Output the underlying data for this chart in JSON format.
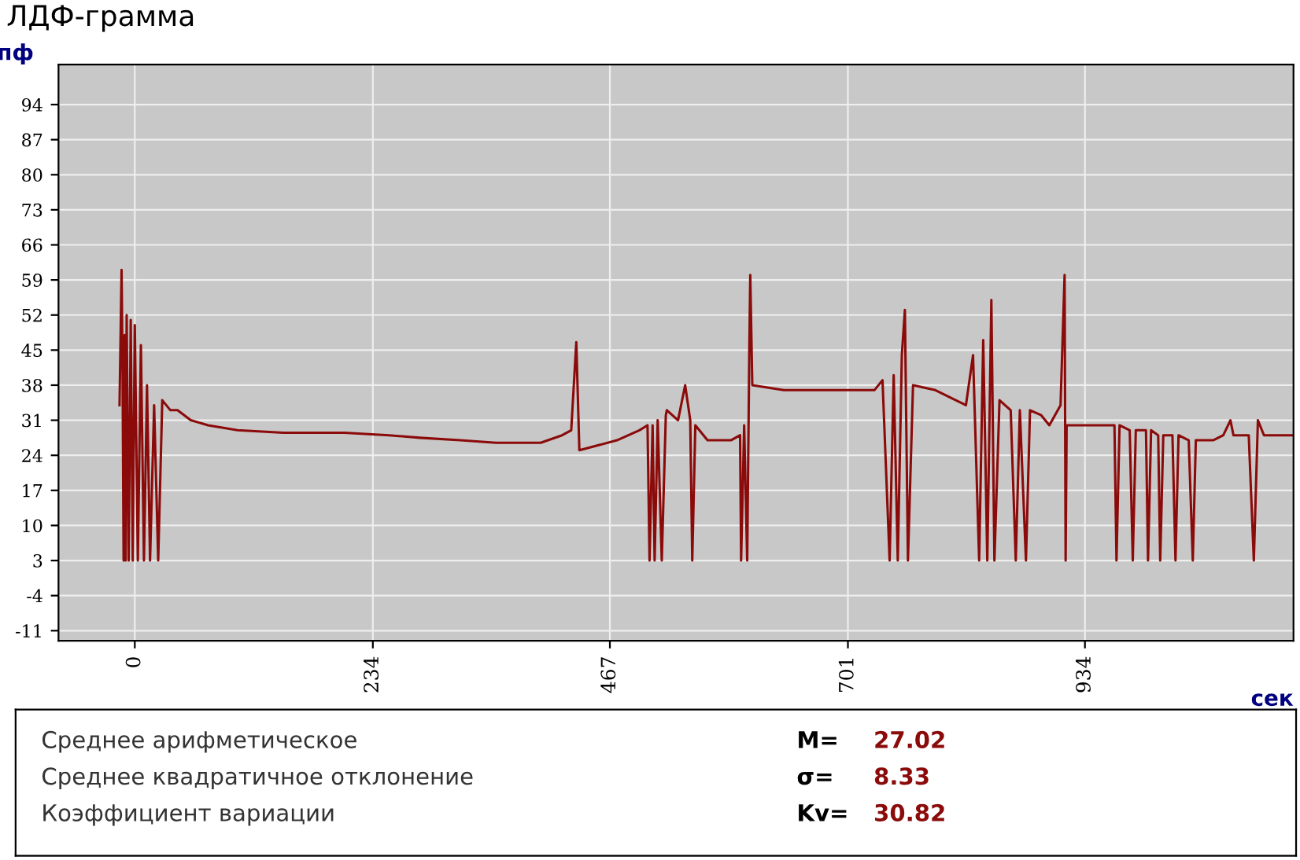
{
  "chart_data": {
    "type": "line",
    "title": "ЛДФ-грамма",
    "xlabel": "сек",
    "ylabel": "пф",
    "series": [
      {
        "color": "#8b0a0a",
        "x": [
          -15,
          -13,
          -12,
          -11,
          -10,
          -9,
          -8,
          -6,
          -4,
          -2,
          0,
          3,
          6,
          9,
          12,
          15,
          19,
          23,
          27,
          35,
          42,
          55,
          72,
          101,
          146,
          206,
          250,
          280,
          320,
          355,
          399,
          420,
          429,
          434,
          437,
          474,
          496,
          504,
          506,
          509,
          511,
          514,
          518,
          522,
          523,
          534,
          541,
          546,
          548,
          551,
          563,
          586,
          595,
          596,
          599,
          602,
          604,
          605,
          607,
          638,
          683,
          727,
          735,
          742,
          746,
          750,
          754,
          757,
          760,
          765,
          787,
          817,
          824,
          830,
          834,
          838,
          842,
          845,
          850,
          861,
          866,
          870,
          876,
          880,
          891,
          899,
          910,
          914,
          915,
          916,
          921,
          951,
          963,
          965,
          968,
          978,
          981,
          984,
          994,
          996,
          999,
          1006,
          1008,
          1011,
          1020,
          1023,
          1026,
          1036,
          1040,
          1043,
          1060,
          1070,
          1077,
          1080,
          1095,
          1100,
          1104,
          1110,
          1139
        ],
        "values": [
          34,
          61,
          40,
          3,
          48,
          3,
          52,
          3,
          51,
          3,
          50,
          3,
          46,
          3,
          38,
          3,
          34,
          3,
          35,
          33,
          33,
          31,
          30,
          29,
          28.5,
          28.5,
          28,
          27.5,
          27,
          26.5,
          26.5,
          28,
          29,
          46.6,
          25,
          27,
          29,
          30,
          3,
          30,
          3,
          31,
          3,
          32,
          33,
          31,
          38,
          31,
          3,
          30,
          27,
          27,
          28,
          3,
          30,
          3,
          44,
          60,
          38,
          37,
          37,
          37,
          39,
          3,
          40,
          3,
          44,
          53,
          3,
          38,
          37,
          34,
          44,
          3,
          47,
          3,
          55,
          3,
          35,
          33,
          3,
          33,
          3,
          33,
          32,
          30,
          34,
          60,
          3,
          30,
          30,
          30,
          30,
          3,
          30,
          29,
          3,
          29,
          29,
          3,
          29,
          28,
          3,
          28,
          28,
          3,
          28,
          27,
          3,
          27,
          27,
          28,
          31,
          28,
          28,
          3,
          31,
          28,
          28
        ]
      }
    ],
    "xlim": [
      -75,
      1139
    ],
    "ylim": [
      -13,
      102
    ],
    "xticks": [
      0,
      234,
      467,
      701,
      934
    ],
    "yticks": [
      -11,
      -4,
      3,
      10,
      17,
      24,
      31,
      38,
      45,
      52,
      59,
      66,
      73,
      80,
      87,
      94
    ],
    "grid": true,
    "legend": false,
    "annotations": [
      "Среднее арифметическое",
      "M=",
      "27.02",
      "Среднее квадратичное отклонение",
      "σ=",
      "8.33",
      "Коэффициент вариации",
      "Kv=",
      "30.82"
    ]
  }
}
